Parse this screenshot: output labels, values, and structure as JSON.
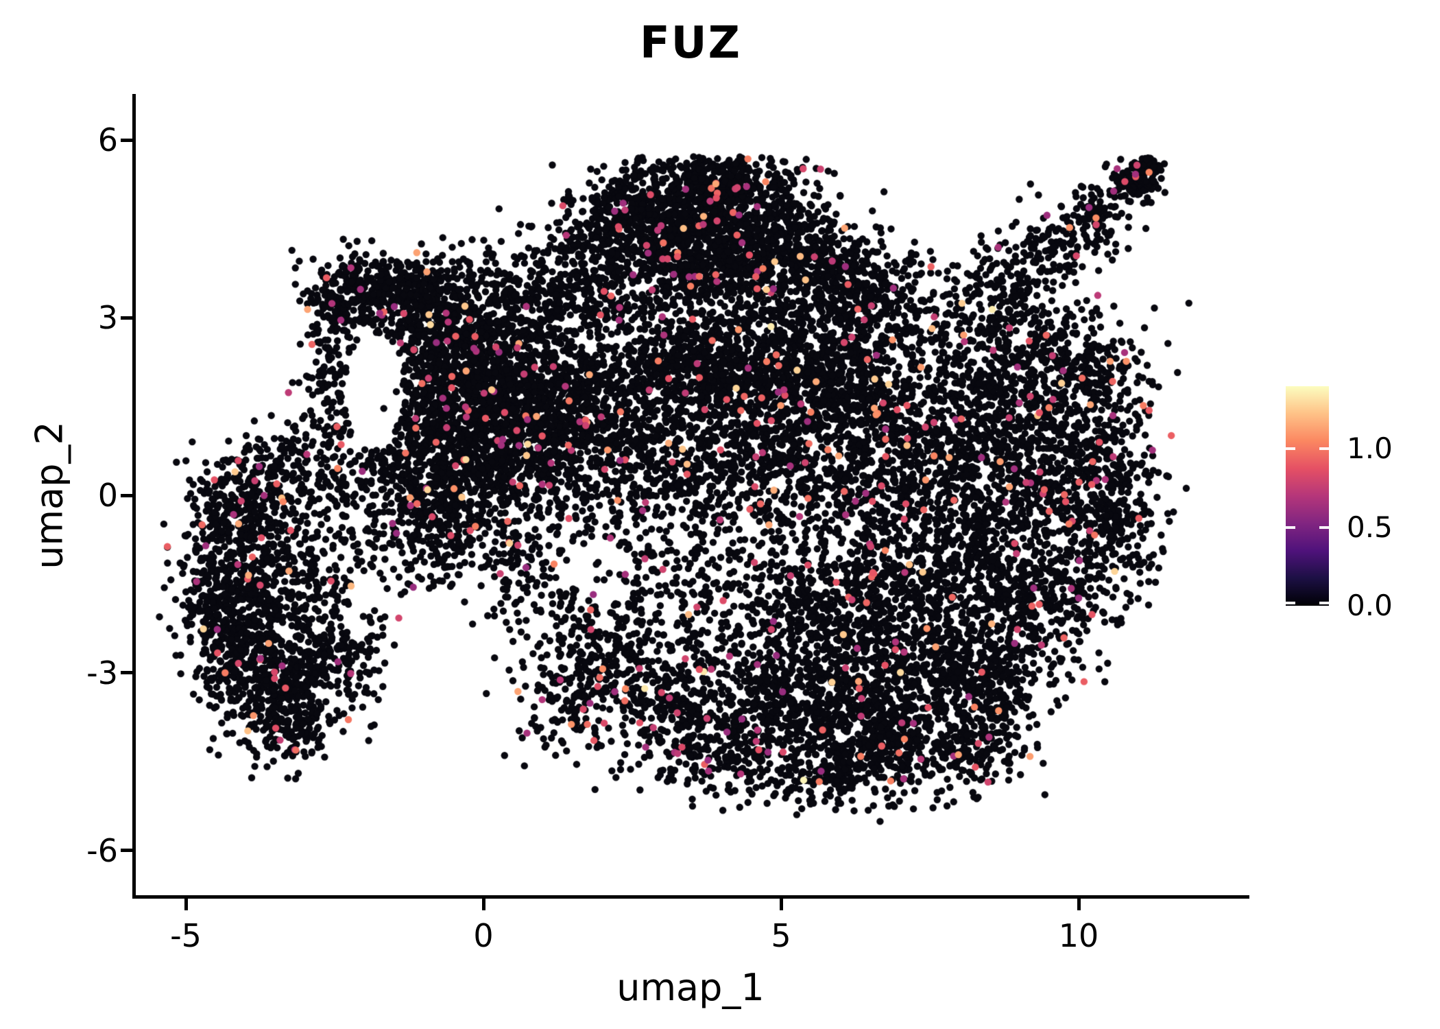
{
  "title": "FUZ",
  "axes": {
    "x_label": "umap_1",
    "y_label": "umap_2",
    "x_ticks": [
      {
        "value": -5,
        "label": "-5"
      },
      {
        "value": 0,
        "label": "0"
      },
      {
        "value": 5,
        "label": "5"
      },
      {
        "value": 10,
        "label": "10"
      }
    ],
    "y_ticks": [
      {
        "value": 6,
        "label": "6"
      },
      {
        "value": 3,
        "label": "3"
      },
      {
        "value": 0,
        "label": "0"
      },
      {
        "value": -3,
        "label": "-3"
      },
      {
        "value": -6,
        "label": "-6"
      }
    ]
  },
  "colorbar": {
    "vmin": 0.0,
    "vmax": 1.4,
    "ticks": [
      {
        "value": 1.0,
        "label": "1.0"
      },
      {
        "value": 0.5,
        "label": "0.5"
      },
      {
        "value": 0.0,
        "label": "0.0"
      }
    ]
  },
  "colors": {
    "background": "#ffffff",
    "axis": "#000000",
    "point_black": "#08080f",
    "colormap_stops": [
      [
        0.0,
        "#000004"
      ],
      [
        0.125,
        "#1c1044"
      ],
      [
        0.25,
        "#4f127b"
      ],
      [
        0.375,
        "#812581"
      ],
      [
        0.5,
        "#b5367a"
      ],
      [
        0.625,
        "#e55064"
      ],
      [
        0.75,
        "#fb8761"
      ],
      [
        0.875,
        "#fec287"
      ],
      [
        1.0,
        "#fcfdbf"
      ]
    ]
  },
  "chart_data": {
    "type": "scatter",
    "title": "FUZ",
    "xlabel": "umap_1",
    "ylabel": "umap_2",
    "xlim": [
      -5.9,
      12.9
    ],
    "ylim": [
      -6.8,
      6.8
    ],
    "grid": false,
    "legend_position": "right-colorbar",
    "color_scale": "magma",
    "value_range": [
      0,
      1.4
    ],
    "n_points_approx": 18400,
    "colored_fraction": 0.028,
    "point_radius_px": 5.2,
    "seed": 42,
    "clip": {
      "x_min": -5.6,
      "x_max": 12.6,
      "y_min": -6.5,
      "y_max": 5.72
    },
    "value_distribution": [
      {
        "p": 0.7,
        "range": [
          0.6,
          0.95
        ]
      },
      {
        "p": 0.2,
        "range": [
          0.95,
          1.15
        ]
      },
      {
        "p": 0.09,
        "range": [
          1.15,
          1.3
        ]
      },
      {
        "p": 0.01,
        "range": [
          1.3,
          1.4
        ]
      }
    ],
    "voids": [
      [
        -1.85,
        1.75,
        0.5,
        0.95,
        0.05
      ],
      [
        1.9,
        -1.3,
        0.65,
        0.6,
        0.35
      ]
    ],
    "clusters": [
      [
        -4.35,
        -0.9,
        0.42,
        0.75,
        240
      ],
      [
        -4.4,
        -2.2,
        0.38,
        0.55,
        230
      ],
      [
        -3.85,
        -3.2,
        0.45,
        0.5,
        230
      ],
      [
        -3.2,
        -3.85,
        0.35,
        0.4,
        160
      ],
      [
        -3.6,
        -1.5,
        0.6,
        0.85,
        290
      ],
      [
        -3.0,
        -2.6,
        0.5,
        0.55,
        190
      ],
      [
        -4.05,
        -0.2,
        0.35,
        0.4,
        130
      ],
      [
        -3.45,
        0.35,
        0.4,
        0.4,
        120
      ],
      [
        -2.65,
        -1.4,
        0.5,
        0.8,
        110
      ],
      [
        -2.45,
        -2.9,
        0.4,
        0.45,
        100
      ],
      [
        -2.55,
        0.7,
        0.3,
        0.85,
        120
      ],
      [
        -2.5,
        2.3,
        0.28,
        0.75,
        120
      ],
      [
        -2.25,
        3.3,
        0.4,
        0.38,
        150
      ],
      [
        -1.55,
        3.55,
        0.55,
        0.27,
        260
      ],
      [
        -0.95,
        3.15,
        0.45,
        0.38,
        200
      ],
      [
        -0.45,
        2.65,
        0.45,
        0.38,
        200
      ],
      [
        -0.65,
        1.45,
        0.75,
        0.7,
        620
      ],
      [
        0.5,
        0.95,
        0.75,
        0.65,
        580
      ],
      [
        -1.25,
        0.45,
        0.5,
        0.55,
        260
      ],
      [
        0.2,
        2.0,
        0.65,
        0.45,
        270
      ],
      [
        1.3,
        1.65,
        0.65,
        0.55,
        320
      ],
      [
        -1.0,
        -0.65,
        0.5,
        0.5,
        180
      ],
      [
        0.0,
        -0.25,
        0.65,
        0.55,
        220
      ],
      [
        1.0,
        3.0,
        0.55,
        0.55,
        230
      ],
      [
        1.85,
        3.85,
        0.5,
        0.55,
        240
      ],
      [
        3.1,
        4.55,
        0.7,
        0.55,
        500
      ],
      [
        4.3,
        4.75,
        0.65,
        0.5,
        500
      ],
      [
        3.6,
        3.7,
        0.85,
        0.55,
        470
      ],
      [
        5.3,
        4.0,
        0.65,
        0.55,
        380
      ],
      [
        6.3,
        3.4,
        0.55,
        0.5,
        270
      ],
      [
        2.45,
        4.85,
        0.4,
        0.35,
        180
      ],
      [
        4.0,
        5.3,
        0.55,
        0.28,
        200
      ],
      [
        3.3,
        2.1,
        0.75,
        0.45,
        480
      ],
      [
        4.8,
        1.85,
        0.75,
        0.45,
        480
      ],
      [
        6.1,
        1.95,
        0.55,
        0.45,
        320
      ],
      [
        2.2,
        1.0,
        0.65,
        0.55,
        280
      ],
      [
        3.6,
        0.6,
        0.75,
        0.55,
        280
      ],
      [
        5.0,
        0.6,
        0.65,
        0.55,
        280
      ],
      [
        6.6,
        0.6,
        0.75,
        0.75,
        400
      ],
      [
        7.9,
        1.2,
        0.75,
        0.75,
        380
      ],
      [
        9.2,
        1.4,
        0.75,
        0.75,
        340
      ],
      [
        10.3,
        0.9,
        0.55,
        0.75,
        250
      ],
      [
        10.6,
        -0.5,
        0.45,
        0.65,
        200
      ],
      [
        9.6,
        -0.3,
        0.65,
        0.75,
        270
      ],
      [
        8.4,
        -0.4,
        0.65,
        0.75,
        290
      ],
      [
        7.0,
        -1.2,
        0.75,
        0.75,
        380
      ],
      [
        8.3,
        -1.9,
        0.65,
        0.65,
        340
      ],
      [
        9.6,
        -1.8,
        0.55,
        0.55,
        210
      ],
      [
        6.0,
        -2.2,
        0.65,
        0.65,
        360
      ],
      [
        7.2,
        -3.0,
        0.65,
        0.55,
        340
      ],
      [
        8.6,
        -3.2,
        0.5,
        0.45,
        210
      ],
      [
        10.2,
        2.2,
        0.45,
        0.45,
        140
      ],
      [
        9.0,
        2.5,
        0.55,
        0.45,
        170
      ],
      [
        4.8,
        -3.2,
        0.75,
        0.55,
        380
      ],
      [
        5.8,
        -4.0,
        0.65,
        0.45,
        320
      ],
      [
        7.0,
        -4.2,
        0.55,
        0.4,
        250
      ],
      [
        4.0,
        -4.2,
        0.55,
        0.45,
        220
      ],
      [
        3.0,
        -3.5,
        0.55,
        0.55,
        220
      ],
      [
        2.2,
        -2.7,
        0.5,
        0.55,
        180
      ],
      [
        1.45,
        -3.6,
        0.45,
        0.45,
        130
      ],
      [
        8.2,
        -4.3,
        0.45,
        0.35,
        160
      ],
      [
        5.6,
        -4.85,
        0.65,
        0.22,
        120
      ],
      [
        2.6,
        -0.6,
        1.1,
        0.85,
        260
      ],
      [
        4.5,
        -1.5,
        1.1,
        0.85,
        300
      ],
      [
        1.2,
        -1.6,
        0.75,
        0.65,
        160
      ],
      [
        7.6,
        2.9,
        0.75,
        0.55,
        180
      ],
      [
        8.8,
        3.6,
        0.45,
        0.4,
        120
      ],
      [
        9.6,
        4.2,
        0.32,
        0.35,
        100
      ],
      [
        10.3,
        4.7,
        0.28,
        0.3,
        90
      ],
      [
        11.0,
        5.3,
        0.2,
        0.2,
        130
      ],
      [
        11.2,
        5.55,
        0.13,
        0.12,
        50
      ],
      [
        0.3,
        3.55,
        0.45,
        0.45,
        130
      ],
      [
        5.0,
        2.9,
        0.75,
        0.45,
        260
      ]
    ]
  }
}
